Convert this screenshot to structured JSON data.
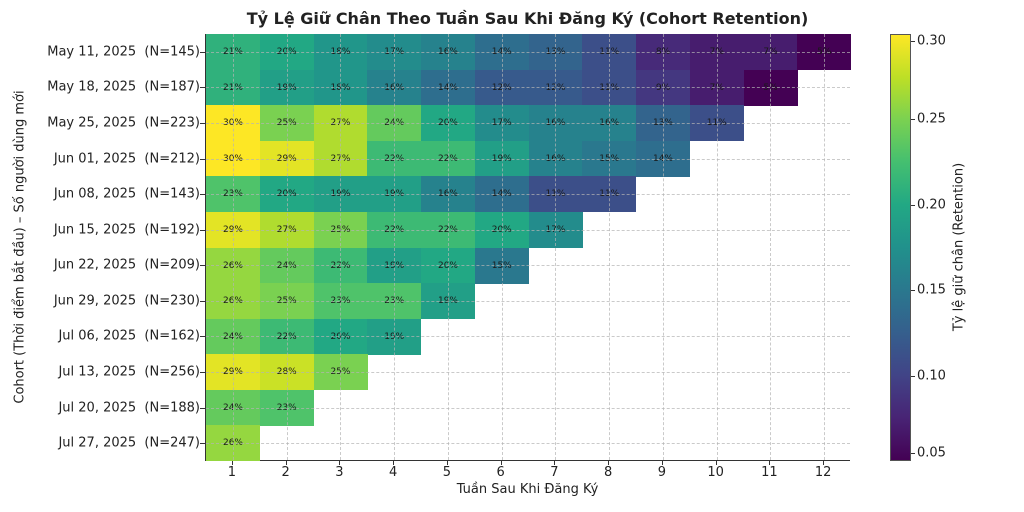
{
  "chart_data": {
    "type": "heatmap",
    "title": "Tỷ Lệ Giữ Chân Theo Tuần Sau Khi Đăng Ký (Cohort Retention)",
    "xlabel": "Tuần Sau Khi Đăng Ký",
    "ylabel": "Cohort (Thời điểm bắt đầu) – Số người dùng mới",
    "x": [
      1,
      2,
      3,
      4,
      5,
      6,
      7,
      8,
      9,
      10,
      11,
      12
    ],
    "y": [
      "May 11, 2025  (N=145)",
      "May 18, 2025  (N=187)",
      "May 25, 2025  (N=223)",
      "Jun 01, 2025  (N=212)",
      "Jun 08, 2025  (N=143)",
      "Jun 15, 2025  (N=192)",
      "Jun 22, 2025  (N=209)",
      "Jun 29, 2025  (N=230)",
      "Jul 06, 2025  (N=162)",
      "Jul 13, 2025  (N=256)",
      "Jul 20, 2025  (N=188)",
      "Jul 27, 2025  (N=247)"
    ],
    "values": [
      [
        0.21,
        0.2,
        0.18,
        0.17,
        0.16,
        0.14,
        0.13,
        0.11,
        0.08,
        0.07,
        0.07,
        0.05
      ],
      [
        0.21,
        0.19,
        0.18,
        0.16,
        0.14,
        0.12,
        0.12,
        0.11,
        0.09,
        0.07,
        0.05
      ],
      [
        0.3,
        0.25,
        0.27,
        0.24,
        0.2,
        0.17,
        0.16,
        0.16,
        0.13,
        0.11
      ],
      [
        0.3,
        0.29,
        0.27,
        0.22,
        0.22,
        0.19,
        0.16,
        0.15,
        0.14
      ],
      [
        0.23,
        0.2,
        0.19,
        0.19,
        0.16,
        0.14,
        0.11,
        0.11
      ],
      [
        0.29,
        0.27,
        0.25,
        0.22,
        0.22,
        0.2,
        0.17
      ],
      [
        0.26,
        0.24,
        0.22,
        0.19,
        0.2,
        0.15
      ],
      [
        0.26,
        0.25,
        0.23,
        0.23,
        0.19
      ],
      [
        0.24,
        0.22,
        0.2,
        0.19
      ],
      [
        0.29,
        0.28,
        0.25
      ],
      [
        0.24,
        0.23
      ],
      [
        0.26
      ]
    ],
    "colorbar": {
      "label": "Tỷ lệ giữ chân (Retention)",
      "range": [
        0.05,
        0.3
      ],
      "ticks": [
        "0.05",
        "0.10",
        "0.15",
        "0.20",
        "0.25",
        "0.30"
      ],
      "colormap": "viridis"
    },
    "grid": true,
    "cell_label_format": "percent"
  }
}
